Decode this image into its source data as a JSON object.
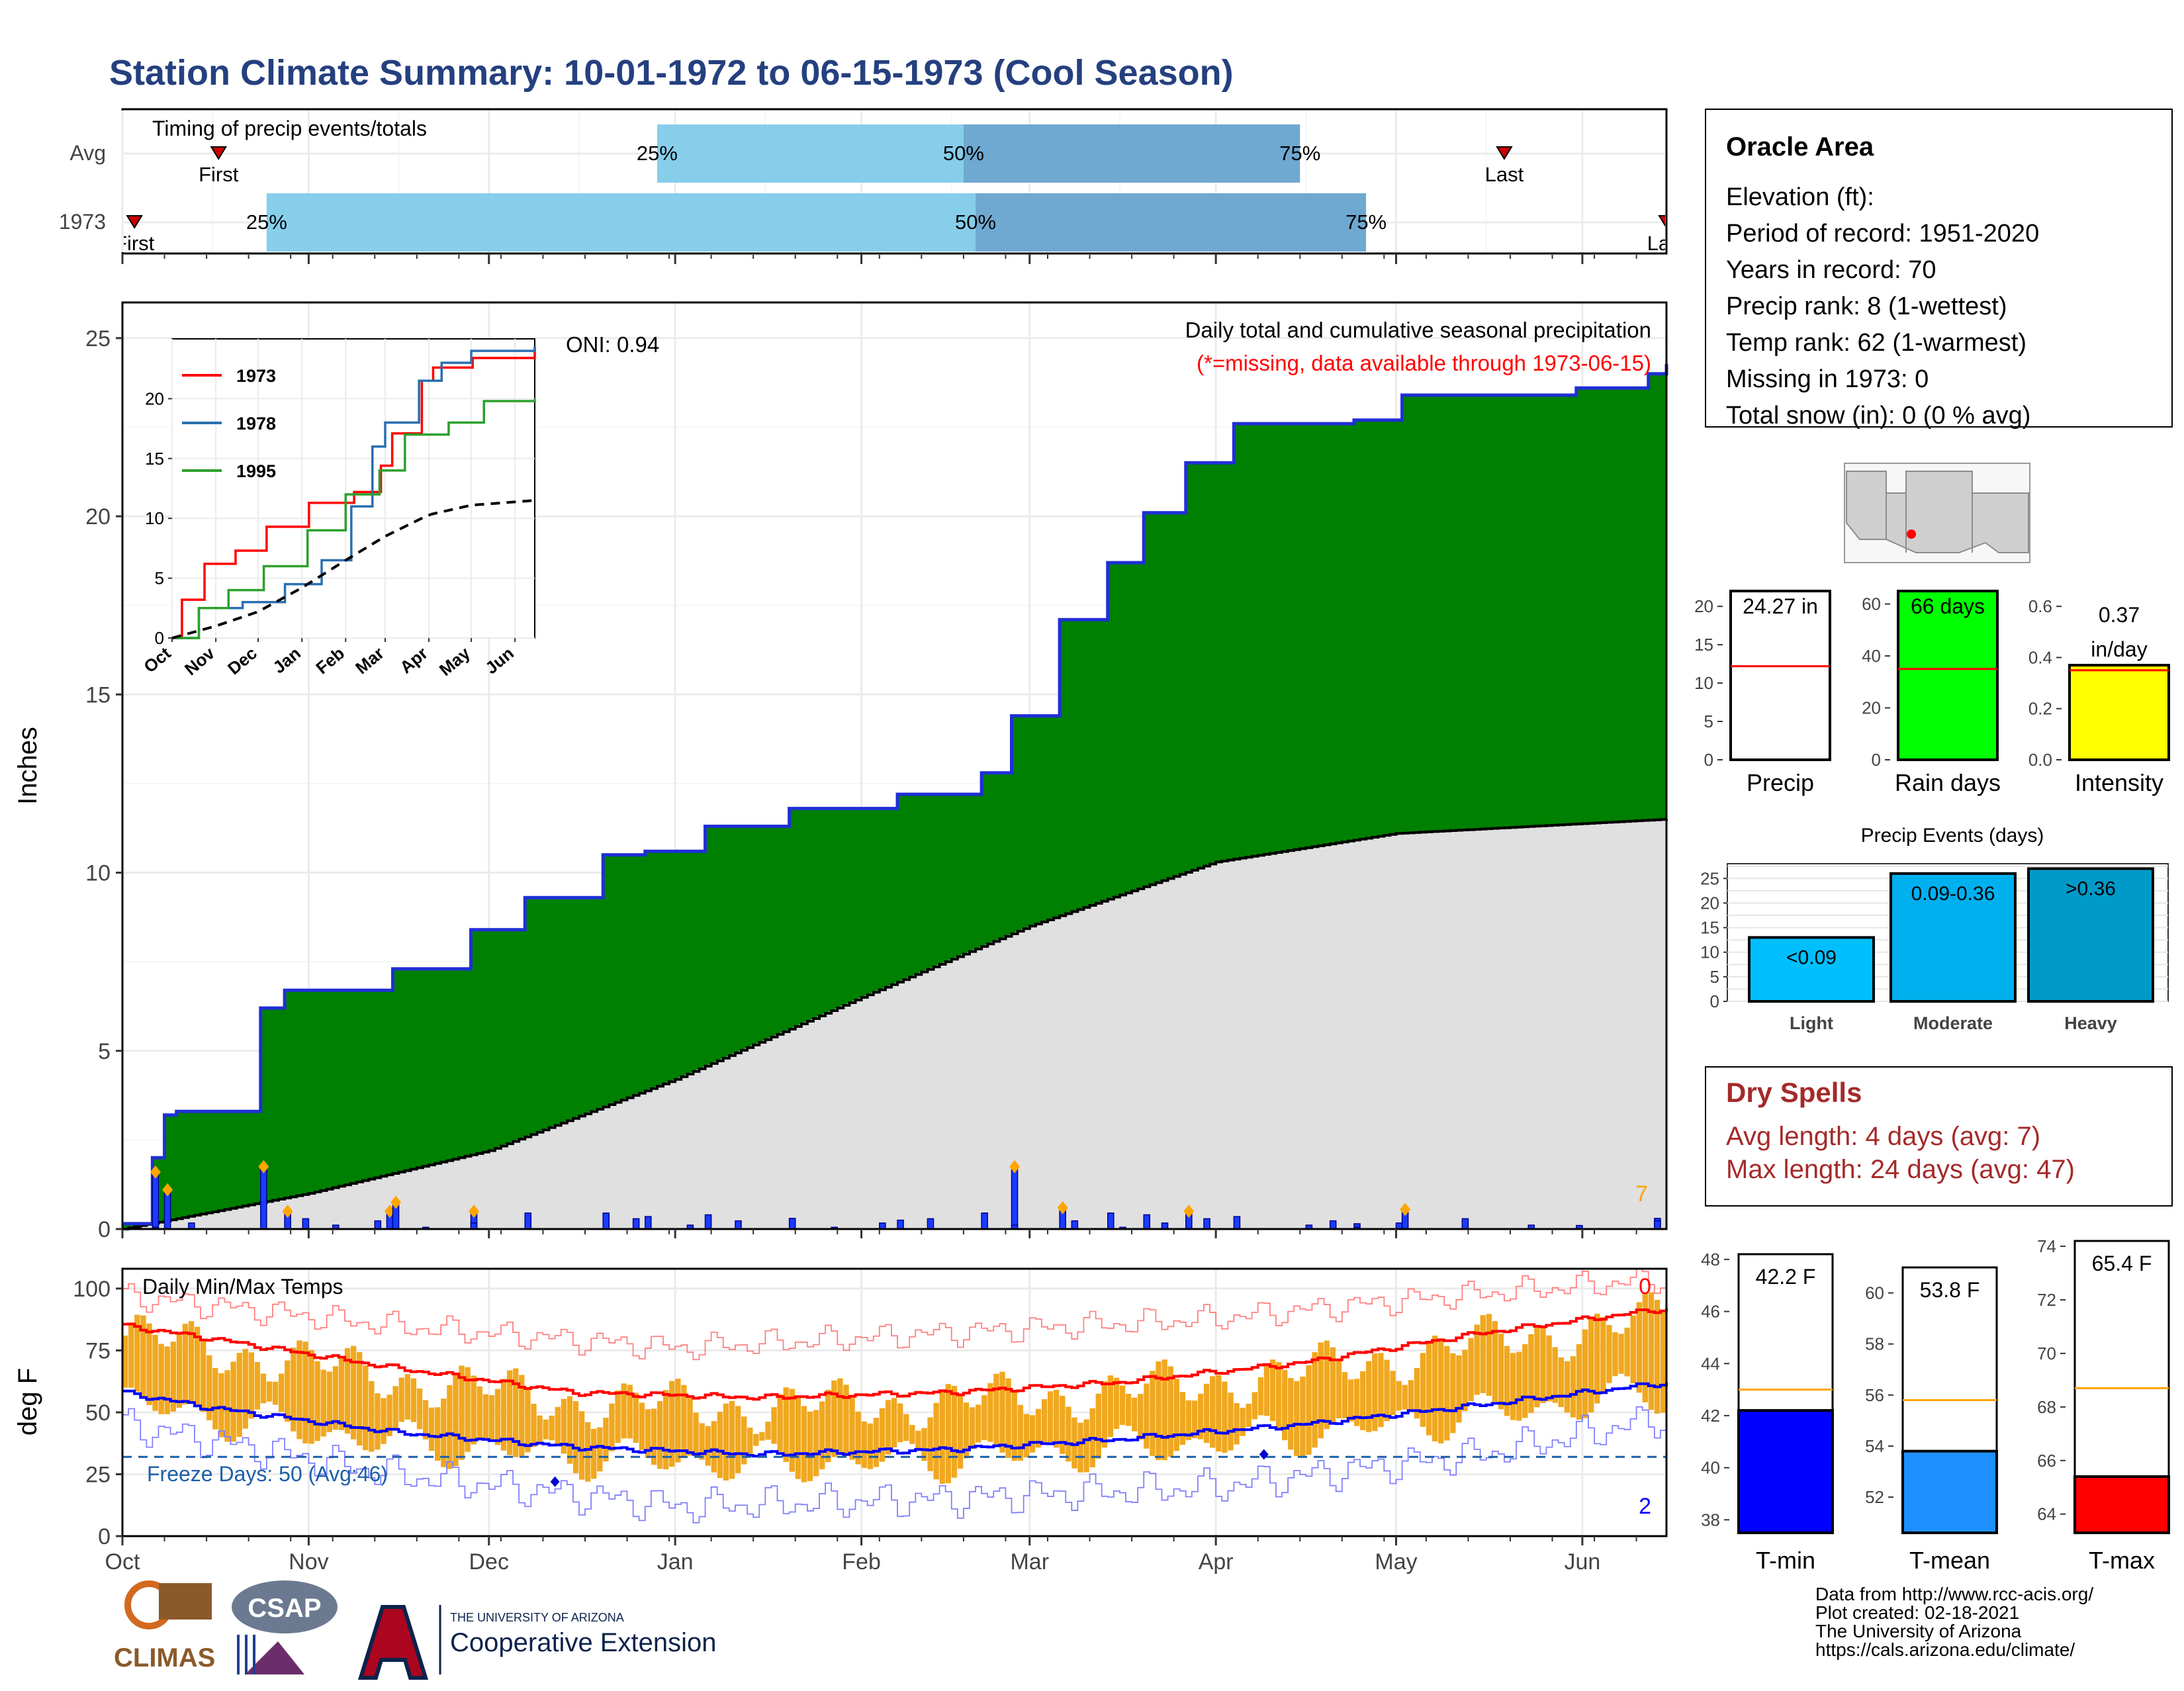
{
  "page_title": "Station Climate Summary: 10-01-1972 to 06-15-1973 (Cool Season)",
  "colors": {
    "title": "#25407f",
    "green_fill": "#008000",
    "cum_line": "#1f2fd6",
    "avg_fill": "#e0e0e0",
    "bar_blue": "#1a3cff",
    "marker": "#ffa500",
    "q_light": "#87ceeb",
    "q_dark": "#6fa8d0",
    "tmin": "#0000ff",
    "tmean": "#1e90ff",
    "tmax": "#ff0000",
    "yellow": "#ffff00",
    "lime": "#00ff00",
    "ev_light": "#00bfff",
    "ev_mod": "#00b0ee",
    "ev_heavy": "#009ac9",
    "dry": "#a52a2a",
    "temp_bar": "#f0a820"
  },
  "timing": {
    "title": "Timing of precip events/totals",
    "rows": [
      {
        "label": "Avg",
        "q25": "25%",
        "q50": "50%",
        "q75": "75%",
        "first": "First",
        "last": "Last",
        "q25_day": 89,
        "q50_day": 140,
        "q75_day": 196,
        "first_day": 16,
        "last_day": 230
      },
      {
        "label": "1973",
        "q25": "25%",
        "q50": "50%",
        "q75": "75%",
        "first": "First",
        "last": "Last",
        "q25_day": 24,
        "q50_day": 142,
        "q75_day": 207,
        "first_day": 2,
        "last_day": 257
      }
    ]
  },
  "main": {
    "subtitle1": "Daily total and cumulative seasonal precipitation",
    "subtitle2": "(*=missing, data available through 1973-06-15)",
    "oni": "ONI: 0.94",
    "ylabel": "Inches",
    "corner_count": "7",
    "y_ticks": [
      "0",
      "5",
      "10",
      "15",
      "20",
      "25"
    ],
    "x_ticks": [
      "Oct",
      "Nov",
      "Dec",
      "Jan",
      "Feb",
      "Mar",
      "Apr",
      "May",
      "Jun"
    ]
  },
  "inset": {
    "legend": [
      "1973",
      "1978",
      "1995"
    ],
    "y_ticks": [
      "0",
      "5",
      "10",
      "15",
      "20"
    ],
    "x_ticks": [
      "Oct",
      "Nov",
      "Dec",
      "Jan",
      "Feb",
      "Mar",
      "Apr",
      "May",
      "Jun"
    ]
  },
  "temps": {
    "title": "Daily Min/Max Temps",
    "freeze": "Freeze Days: 50 (Avg:46)",
    "ylabel": "deg F",
    "corner_top": "0",
    "corner_bottom": "2",
    "y_ticks": [
      "0",
      "25",
      "50",
      "75",
      "100"
    ],
    "x_ticks": [
      "Oct",
      "Nov",
      "Dec",
      "Jan",
      "Feb",
      "Mar",
      "Apr",
      "May",
      "Jun"
    ]
  },
  "station": {
    "name": "Oracle Area",
    "lines": [
      "Elevation (ft):",
      "Period of record: 1951-2020",
      "Years in record: 70",
      "Precip rank: 8 (1-wettest)",
      "Temp rank: 62 (1-warmest)",
      "Missing in 1973: 0",
      "Total snow (in): 0 (0 % avg)"
    ]
  },
  "summary_bars": [
    {
      "name": "Precip",
      "value_label": "24.27 in",
      "value": 24.27,
      "avg": 12.2,
      "ylim": [
        0,
        22
      ],
      "ticks": [
        "0",
        "5",
        "10",
        "15",
        "20"
      ]
    },
    {
      "name": "Rain days",
      "value_label": "66 days",
      "value": 66,
      "avg": 35,
      "ylim": [
        0,
        65
      ],
      "ticks": [
        "0",
        "20",
        "40",
        "60"
      ]
    },
    {
      "name": "Intensity",
      "value_label_1": "0.37",
      "value_label_2": "in/day",
      "value": 0.37,
      "avg": 0.35,
      "ylim": [
        0,
        0.66
      ],
      "ticks": [
        "0.0",
        "0.2",
        "0.4",
        "0.6"
      ]
    }
  ],
  "events": {
    "title": "Precip Events (days)",
    "ticks": [
      "0",
      "5",
      "10",
      "15",
      "20",
      "25"
    ],
    "bars": [
      {
        "name": "Light",
        "label": "<0.09",
        "value": 13
      },
      {
        "name": "Moderate",
        "label": "0.09-0.36",
        "value": 26
      },
      {
        "name": "Heavy",
        "label": ">0.36",
        "value": 27
      }
    ]
  },
  "dry_spells": {
    "title": "Dry Spells",
    "line1": "Avg length: 4 days (avg: 7)",
    "line2": "Max length: 24 days (avg: 47)"
  },
  "temp_summary": [
    {
      "name": "T-min",
      "value_label": "42.2 F",
      "value": 42.2,
      "avg": 43.0,
      "ylim": [
        37.5,
        48.2
      ],
      "ticks": [
        "38",
        "40",
        "42",
        "44",
        "46",
        "48"
      ]
    },
    {
      "name": "T-mean",
      "value_label": "53.8 F",
      "value": 53.8,
      "avg": 55.8,
      "ylim": [
        50.6,
        61.0
      ],
      "ticks": [
        "52",
        "54",
        "56",
        "58",
        "60"
      ]
    },
    {
      "name": "T-max",
      "value_label": "65.4 F",
      "value": 65.4,
      "avg": 68.7,
      "ylim": [
        63.3,
        74.2
      ],
      "ticks": [
        "64",
        "66",
        "68",
        "70",
        "72",
        "74"
      ]
    }
  ],
  "footer": {
    "lines": [
      "Data from http://www.rcc-acis.org/",
      "Plot created: 02-18-2021",
      "The University of Arizona",
      "https://cals.arizona.edu/climate/"
    ],
    "climas": "CLIMAS",
    "csap": "CSAP",
    "ua_small": "THE UNIVERSITY OF ARIZONA",
    "ua_big": "Cooperative Extension"
  },
  "chart_data": [
    {
      "type": "area",
      "title": "Daily total and cumulative seasonal precipitation",
      "ylabel": "Inches",
      "ylim": [
        0,
        26
      ],
      "x_unit": "date",
      "cumulative_1973": {
        "x": [
          "1972-10-01",
          "1972-10-06",
          "1972-10-08",
          "1972-10-10",
          "1972-10-24",
          "1972-10-28",
          "1972-11-15",
          "1972-11-28",
          "1972-12-07",
          "1972-12-20",
          "1972-12-27",
          "1973-01-06",
          "1973-01-20",
          "1973-02-07",
          "1973-02-21",
          "1973-02-26",
          "1973-03-06",
          "1973-03-14",
          "1973-03-20",
          "1973-03-27",
          "1973-04-04",
          "1973-04-24",
          "1973-05-02",
          "1973-05-31",
          "1973-06-12",
          "1973-06-15"
        ],
        "y": [
          0.0,
          2.0,
          3.2,
          3.3,
          6.2,
          6.7,
          7.3,
          8.4,
          9.3,
          10.5,
          10.6,
          11.3,
          11.8,
          12.2,
          12.8,
          14.4,
          17.1,
          18.7,
          20.1,
          21.5,
          22.6,
          22.7,
          23.4,
          23.6,
          24.0,
          24.27
        ]
      },
      "average_cumulative": {
        "x": [
          "1972-10-01",
          "1972-11-01",
          "1972-12-01",
          "1973-01-01",
          "1973-02-01",
          "1973-03-01",
          "1973-04-01",
          "1973-05-01",
          "1973-06-15"
        ],
        "y": [
          0.0,
          1.0,
          2.2,
          4.2,
          6.5,
          8.5,
          10.3,
          11.1,
          11.5
        ]
      },
      "daily_totals": {
        "x": [
          "1972-10-06",
          "1972-10-08",
          "1972-10-24",
          "1972-10-28",
          "1972-11-14",
          "1972-11-15",
          "1972-11-28",
          "1972-12-07",
          "1972-12-20",
          "1972-12-27",
          "1973-01-06",
          "1973-01-20",
          "1973-02-07",
          "1973-02-21",
          "1973-02-26",
          "1973-03-06",
          "1973-03-14",
          "1973-03-20",
          "1973-03-27",
          "1973-04-04",
          "1973-04-24",
          "1973-05-02",
          "1973-05-31",
          "1973-06-13"
        ],
        "y": [
          1.6,
          1.1,
          1.75,
          0.5,
          0.5,
          0.75,
          0.5,
          0.45,
          0.45,
          0.35,
          0.4,
          0.3,
          0.25,
          0.45,
          1.75,
          0.6,
          0.45,
          0.4,
          0.5,
          0.35,
          0.15,
          0.55,
          0.1,
          0.3
        ]
      },
      "inset": {
        "type": "line",
        "ylim": [
          0,
          25
        ],
        "series": [
          {
            "name": "1973",
            "x": [
              "1972-10-01",
              "1972-10-08",
              "1972-10-24",
              "1972-11-15",
              "1972-12-07",
              "1973-01-06",
              "1973-02-07",
              "1973-02-26",
              "1973-03-06",
              "1973-03-27",
              "1973-04-04",
              "1973-05-02",
              "1973-06-15"
            ],
            "y": [
              0,
              3.2,
              6.2,
              7.3,
              9.3,
              11.3,
              12.2,
              14.4,
              17.1,
              21.5,
              22.6,
              23.4,
              24.3
            ]
          },
          {
            "name": "1978",
            "x": [
              "1972-10-01",
              "1972-10-20",
              "1972-11-20",
              "1972-12-20",
              "1973-01-15",
              "1973-02-05",
              "1973-02-20",
              "1973-03-01",
              "1973-03-25",
              "1973-04-10",
              "1973-05-01",
              "1973-06-15"
            ],
            "y": [
              0,
              2.5,
              3.0,
              4.5,
              6.5,
              11.0,
              16.0,
              18.0,
              21.5,
              23.0,
              24.0,
              24.4
            ]
          },
          {
            "name": "1995",
            "x": [
              "1972-10-01",
              "1972-10-20",
              "1972-11-10",
              "1972-12-05",
              "1973-01-05",
              "1973-02-01",
              "1973-02-25",
              "1973-03-15",
              "1973-04-15",
              "1973-05-10",
              "1973-06-15"
            ],
            "y": [
              0,
              2.5,
              4.0,
              6.0,
              9.0,
              12.0,
              14.0,
              17.0,
              18.0,
              19.8,
              20.0
            ]
          },
          {
            "name": "average",
            "x": [
              "1972-10-01",
              "1972-11-01",
              "1972-12-01",
              "1973-01-01",
              "1973-02-01",
              "1973-03-01",
              "1973-04-01",
              "1973-05-01",
              "1973-06-15"
            ],
            "y": [
              0,
              1.0,
              2.2,
              4.2,
              6.5,
              8.5,
              10.3,
              11.1,
              11.5
            ]
          }
        ]
      }
    },
    {
      "type": "bar",
      "title": "Daily Min/Max Temps",
      "ylabel": "deg F",
      "ylim": [
        0,
        108
      ],
      "x_unit": "date",
      "max_temp_avg": {
        "x": [
          "1972-10-01",
          "1972-10-15",
          "1972-11-15",
          "1972-12-15",
          "1973-01-15",
          "1973-02-15",
          "1973-03-15",
          "1973-04-15",
          "1973-05-15",
          "1973-06-15"
        ],
        "y": [
          85,
          80,
          68,
          58,
          56,
          58,
          62,
          70,
          82,
          92
        ]
      },
      "min_temp_avg": {
        "x": [
          "1972-10-01",
          "1972-10-15",
          "1972-11-15",
          "1972-12-15",
          "1973-01-15",
          "1973-02-15",
          "1973-03-15",
          "1973-04-15",
          "1973-05-15",
          "1973-06-15"
        ],
        "y": [
          58,
          52,
          42,
          36,
          33,
          35,
          39,
          45,
          53,
          62
        ]
      },
      "record_high": {
        "x": [
          "1972-10-01",
          "1972-11-15",
          "1973-01-01",
          "1973-02-15",
          "1973-04-01",
          "1973-05-15",
          "1973-06-15"
        ],
        "y": [
          97,
          85,
          76,
          82,
          88,
          98,
          104
        ]
      },
      "record_low": {
        "x": [
          "1972-10-01",
          "1972-11-15",
          "1973-01-01",
          "1973-02-15",
          "1973-04-01",
          "1973-05-15",
          "1973-06-15"
        ],
        "y": [
          45,
          25,
          12,
          15,
          20,
          33,
          48
        ]
      },
      "freeze_line": 32
    }
  ]
}
